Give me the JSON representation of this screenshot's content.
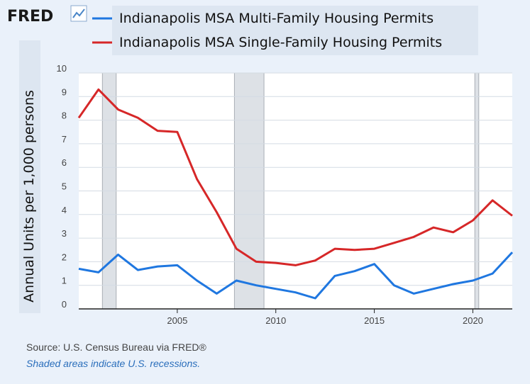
{
  "brand": {
    "logo_text": "FRED",
    "logo_icon": "chart-line-icon"
  },
  "legend": {
    "items": [
      {
        "label": "Indianapolis MSA Multi-Family Housing Permits",
        "color": "#1f77e0"
      },
      {
        "label": "Indianapolis MSA Single-Family Housing Permits",
        "color": "#d62728"
      }
    ]
  },
  "footer": {
    "source": "Source: U.S. Census Bureau via FRED®",
    "note": "Shaded areas indicate U.S. recessions."
  },
  "chart_data": {
    "type": "line",
    "ylabel": "Annual Units per 1,000 persons",
    "ylim": [
      0,
      10
    ],
    "yticks": [
      0,
      1,
      2,
      3,
      4,
      5,
      6,
      7,
      8,
      9,
      10
    ],
    "xlim": [
      2000,
      2022
    ],
    "xticks": [
      2005,
      2010,
      2015,
      2020
    ],
    "grid": "horizontal",
    "recessions": [
      [
        2001.2,
        2001.9
      ],
      [
        2007.9,
        2009.4
      ],
      [
        2020.1,
        2020.3
      ]
    ],
    "x": [
      2000,
      2001,
      2002,
      2003,
      2004,
      2005,
      2006,
      2007,
      2008,
      2009,
      2010,
      2011,
      2012,
      2013,
      2014,
      2015,
      2016,
      2017,
      2018,
      2019,
      2020,
      2021,
      2022
    ],
    "series": [
      {
        "name": "Indianapolis MSA Multi-Family Housing Permits",
        "color": "#1f77e0",
        "values": [
          1.7,
          1.55,
          2.3,
          1.65,
          1.8,
          1.85,
          1.2,
          0.65,
          1.2,
          1.0,
          0.85,
          0.7,
          0.45,
          1.4,
          1.6,
          1.9,
          1.0,
          0.65,
          0.85,
          1.05,
          1.2,
          1.5,
          2.4
        ]
      },
      {
        "name": "Indianapolis MSA Single-Family Housing Permits",
        "color": "#d62728",
        "values": [
          8.1,
          9.3,
          8.45,
          8.1,
          7.55,
          7.5,
          5.5,
          4.1,
          2.55,
          2.0,
          1.95,
          1.85,
          2.05,
          2.55,
          2.5,
          2.55,
          2.8,
          3.05,
          3.45,
          3.25,
          3.75,
          4.6,
          3.95
        ]
      }
    ]
  }
}
